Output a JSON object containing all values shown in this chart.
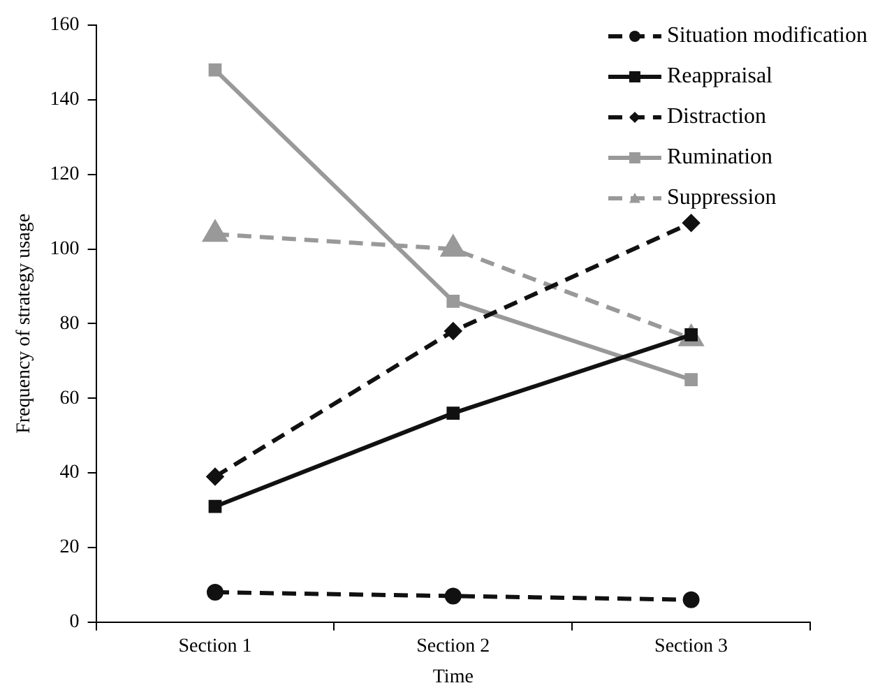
{
  "chart_data": {
    "type": "line",
    "xlabel": "Time",
    "ylabel": "Frequency of strategy usage",
    "categories": [
      "Section 1",
      "Section 2",
      "Section 3"
    ],
    "ylim": [
      0,
      160
    ],
    "yticks": [
      0,
      20,
      40,
      60,
      80,
      100,
      120,
      140,
      160
    ],
    "grid": false,
    "legend": "top right",
    "series": [
      {
        "name": "Situation modification",
        "color": "#111111",
        "values": [
          8,
          7,
          6
        ],
        "marker": "circle",
        "line_style": "dashed"
      },
      {
        "name": "Reappraisal",
        "color": "#111111",
        "values": [
          31,
          56,
          77
        ],
        "marker": "square",
        "line_style": "solid"
      },
      {
        "name": "Distraction",
        "color": "#111111",
        "values": [
          39,
          78,
          107
        ],
        "marker": "diamond",
        "line_style": "dashed"
      },
      {
        "name": "Rumination",
        "color": "#999999",
        "values": [
          148,
          86,
          65
        ],
        "marker": "square",
        "line_style": "solid"
      },
      {
        "name": "Suppression",
        "color": "#999999",
        "values": [
          104,
          100,
          76
        ],
        "marker": "triangle",
        "line_style": "dashed"
      }
    ]
  }
}
